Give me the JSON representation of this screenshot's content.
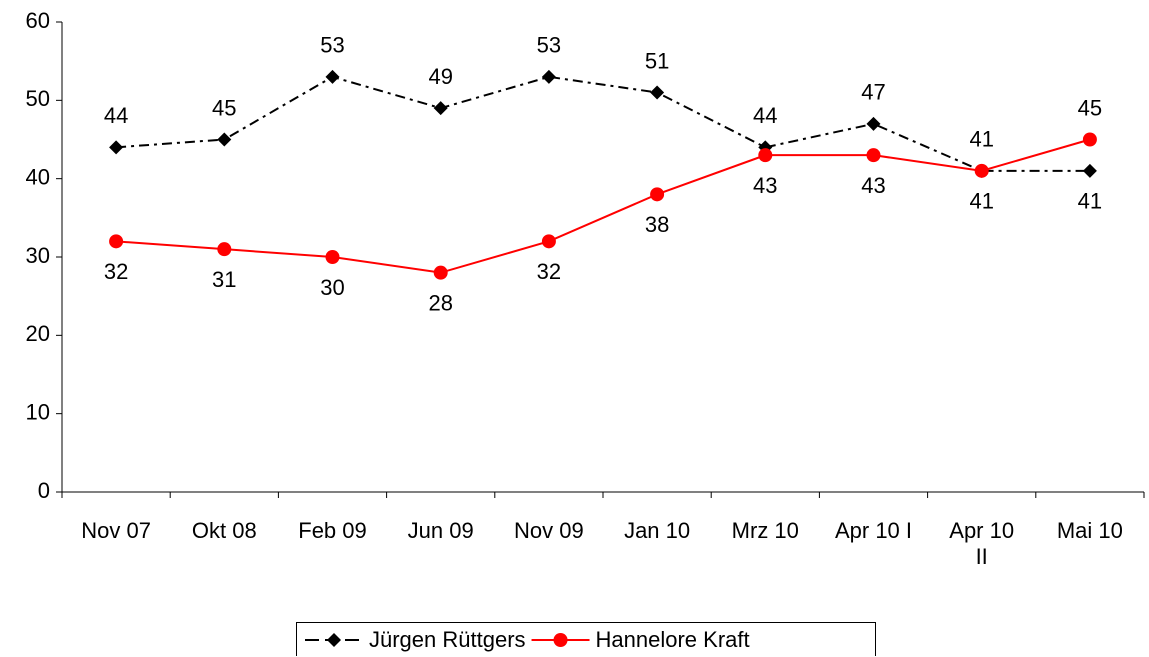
{
  "chart_data": {
    "type": "line",
    "categories": [
      "Nov 07",
      "Okt 08",
      "Feb 09",
      "Jun 09",
      "Nov 09",
      "Jan 10",
      "Mrz 10",
      "Apr 10 I",
      "Apr 10 II",
      "Mai 10"
    ],
    "series": [
      {
        "name": "Jürgen Rüttgers",
        "color": "#000000",
        "values": [
          44,
          45,
          53,
          49,
          53,
          51,
          44,
          47,
          41,
          41
        ]
      },
      {
        "name": "Hannelore Kraft",
        "color": "#ff0000",
        "values": [
          32,
          31,
          30,
          28,
          32,
          38,
          43,
          43,
          41,
          45
        ]
      }
    ],
    "ylim": [
      0,
      60
    ],
    "yticks": [
      0,
      10,
      20,
      30,
      40,
      50,
      60
    ],
    "grid": false,
    "legend": "bottom"
  }
}
